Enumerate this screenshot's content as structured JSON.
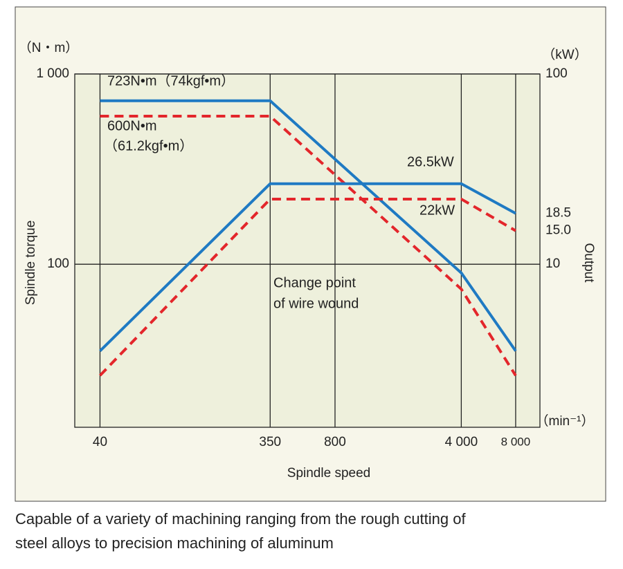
{
  "chart_data": {
    "type": "line",
    "x_label": "Spindle speed",
    "y_label": "Spindle torque",
    "y2_label": "Output",
    "y_unit": "（N・m）",
    "y2_unit": "（kW）",
    "x_unit": "（min⁻¹）",
    "x": [
      40,
      350,
      4000,
      8000
    ],
    "series": [
      {
        "color": "#1f7ac3",
        "dash": false,
        "axis": "y",
        "values": [
          723,
          723,
          90,
          35
        ]
      },
      {
        "color": "#e3262b",
        "dash": true,
        "axis": "y",
        "values": [
          600,
          600,
          74,
          26
        ]
      },
      {
        "color": "#1f7ac3",
        "dash": false,
        "axis": "y2",
        "values": [
          3.5,
          26.5,
          26.5,
          18.5
        ]
      },
      {
        "color": "#e3262b",
        "dash": true,
        "axis": "y2",
        "values": [
          2.6,
          22,
          22,
          15.0
        ]
      }
    ],
    "xscale": "log",
    "yscale": "log",
    "xlim": [
      29,
      10900
    ],
    "ylim": [
      13.9,
      1000
    ],
    "y2lim": [
      1.39,
      100
    ],
    "xticks": [
      40,
      350,
      800,
      {
        "value": 4000,
        "label": "4 000"
      },
      {
        "value": 8000,
        "label": "8 000"
      }
    ],
    "yticks": [
      {
        "value": 1000,
        "label": "1 000"
      },
      100
    ],
    "y2ticks": [
      100,
      18.5,
      {
        "value": 15.0,
        "label": "15.0"
      },
      10
    ],
    "grid": true,
    "annotations": [
      "723N•m（74kgf•m）",
      "600N•m",
      "（61.2kgf•m）",
      "26.5kW",
      "22kW",
      "Change point",
      "of wire wound"
    ],
    "caption": [
      "Capable of a variety of machining ranging from the rough cutting of",
      "steel alloys to precision machining of aluminum"
    ]
  }
}
